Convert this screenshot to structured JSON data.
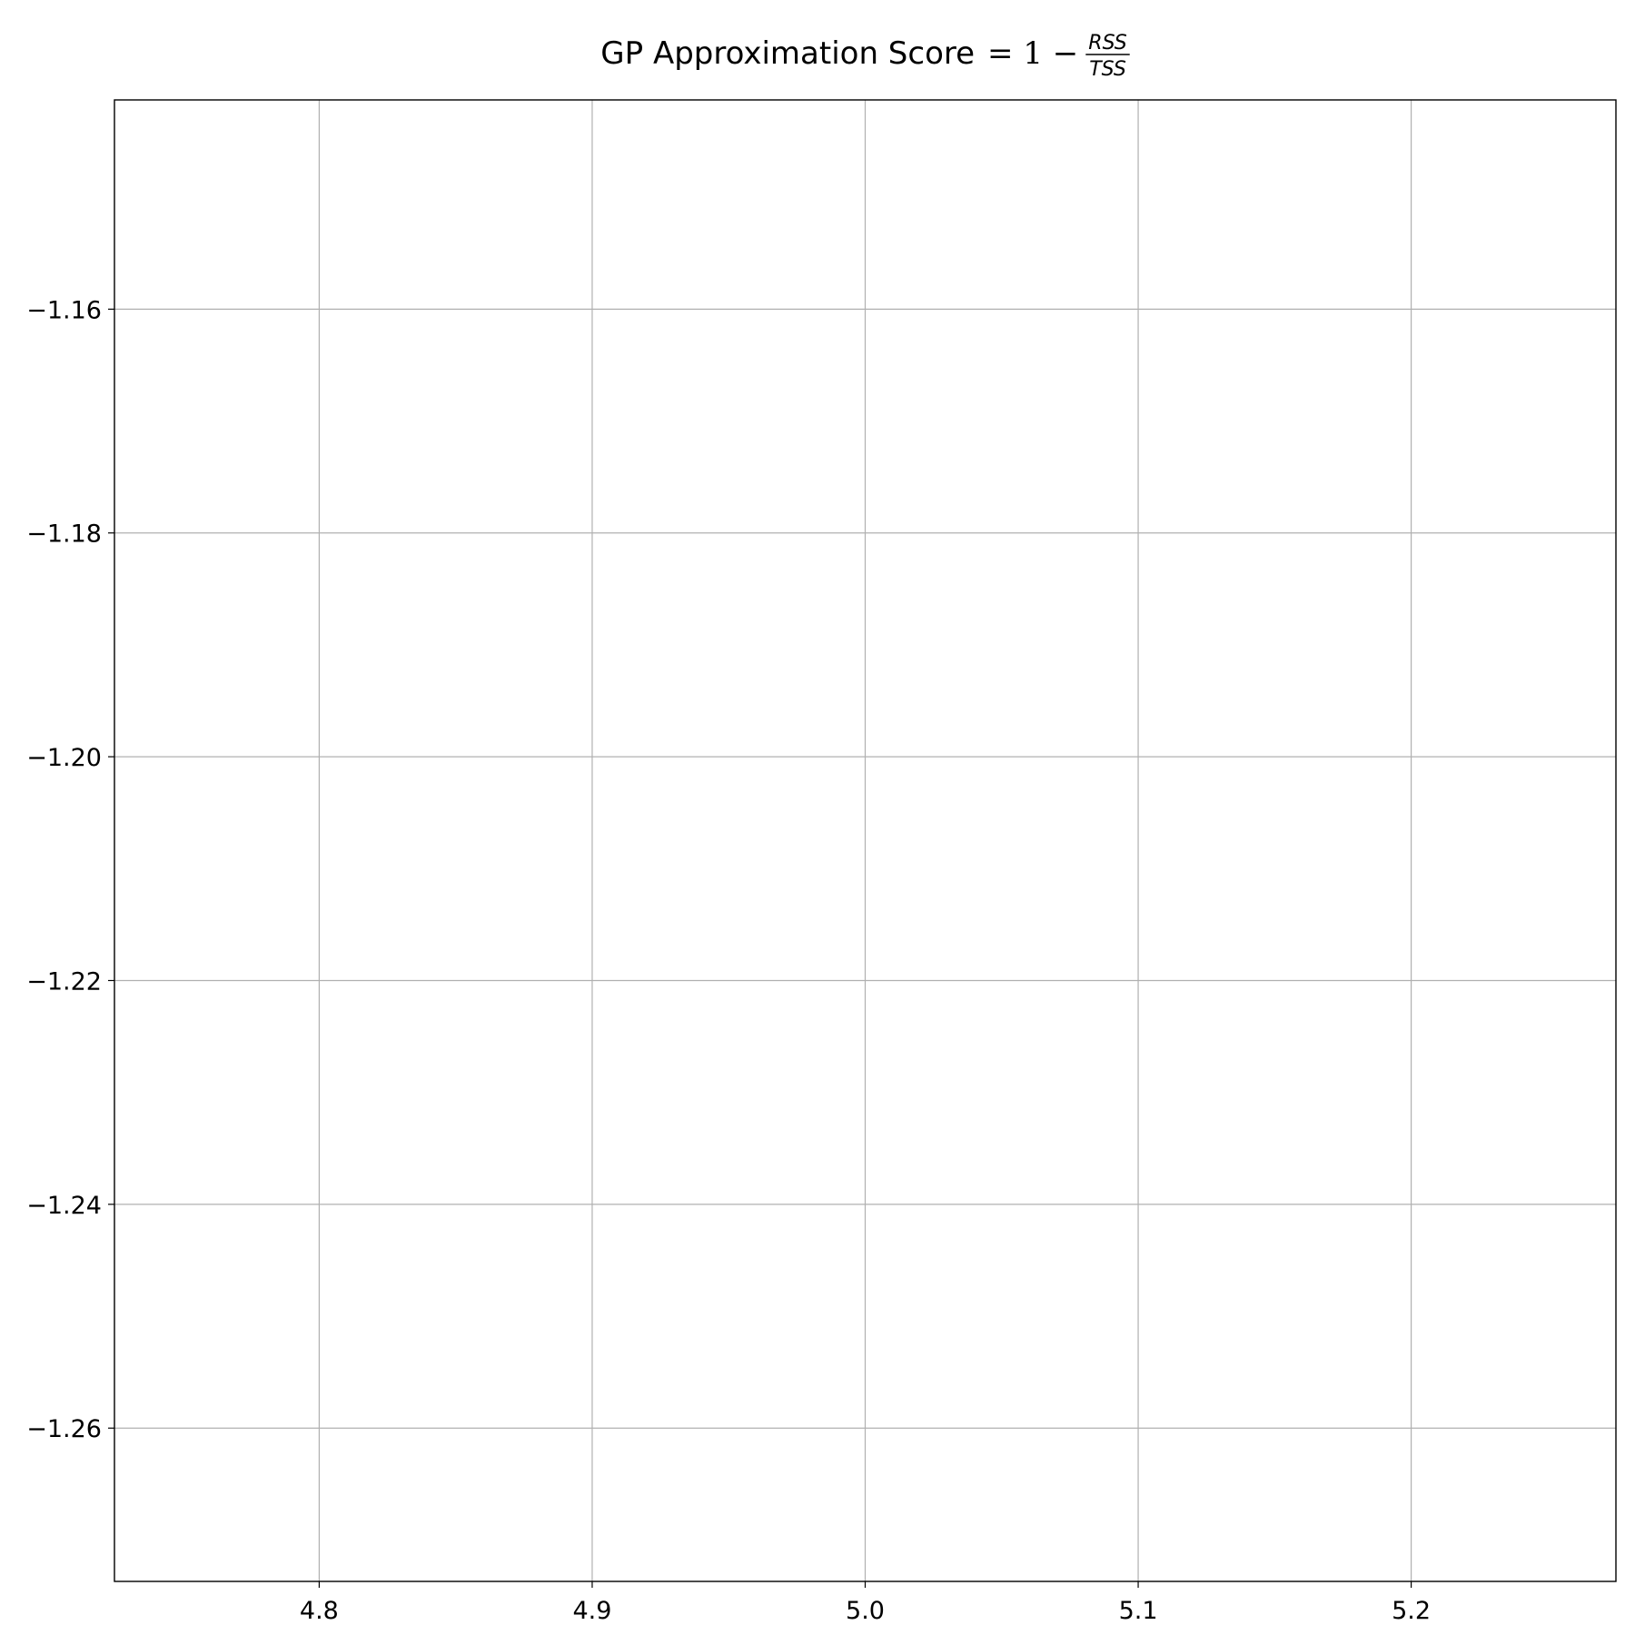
{
  "chart_data": {
    "type": "line",
    "title": {
      "prefix": "GP Approximation Score",
      "math": "= 1 −",
      "numerator": "RSS",
      "denominator": "TSS"
    },
    "xlabel": "",
    "ylabel": "",
    "xlim": [
      4.725,
      5.275
    ],
    "ylim": [
      -1.2737,
      -1.1413
    ],
    "x_ticks": [
      4.8,
      4.9,
      5.0,
      5.1,
      5.2
    ],
    "x_tick_labels": [
      "4.8",
      "4.9",
      "5.0",
      "5.1",
      "5.2"
    ],
    "y_ticks": [
      -1.16,
      -1.18,
      -1.2,
      -1.22,
      -1.24,
      -1.26
    ],
    "y_tick_labels": [
      "−1.16",
      "−1.18",
      "−1.20",
      "−1.22",
      "−1.24",
      "−1.26"
    ],
    "grid": true,
    "series": [],
    "colors": {
      "grid": "#b0b0b0",
      "axes": "#000000",
      "background": "#ffffff"
    }
  }
}
